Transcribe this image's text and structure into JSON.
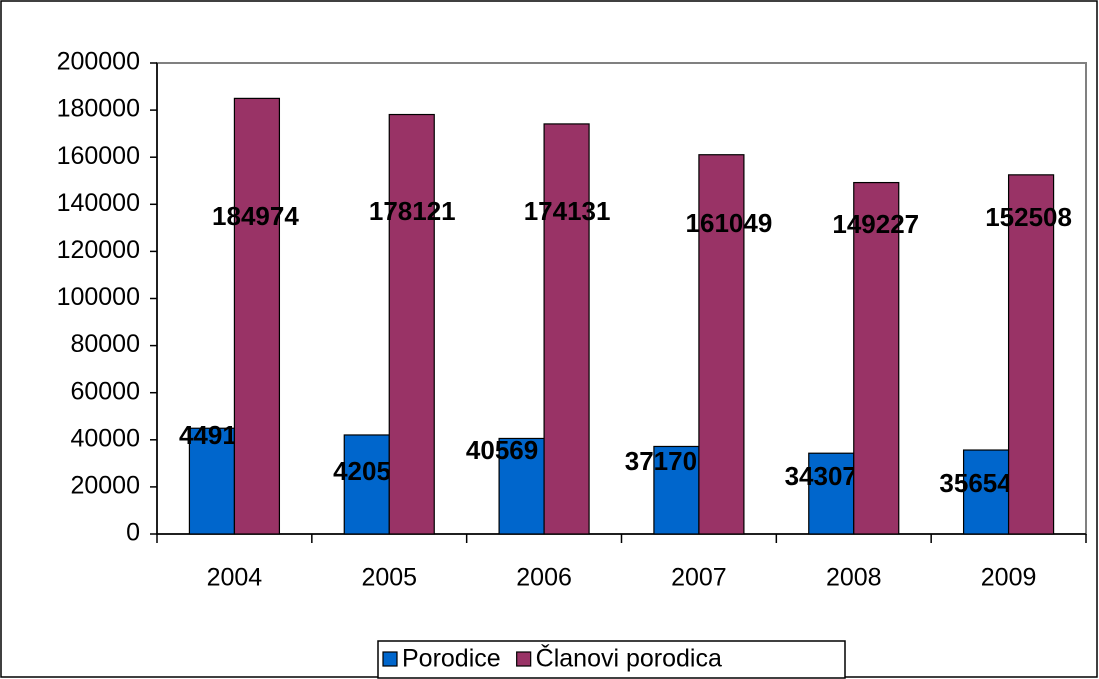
{
  "chart_data": {
    "type": "bar",
    "categories": [
      "2004",
      "2005",
      "2006",
      "2007",
      "2008",
      "2009"
    ],
    "series": [
      {
        "name": "Porodice",
        "color": "#0066cc",
        "values": [
          44911,
          42052,
          40569,
          37170,
          34307,
          35654
        ]
      },
      {
        "name": "Članovi porodica",
        "color": "#993366",
        "values": [
          184974,
          178121,
          174131,
          161049,
          149227,
          152508
        ]
      }
    ],
    "ylim": [
      0,
      200000
    ],
    "yticks": [
      0,
      20000,
      40000,
      60000,
      80000,
      100000,
      120000,
      140000,
      160000,
      180000,
      200000
    ],
    "legend": "bottom"
  }
}
